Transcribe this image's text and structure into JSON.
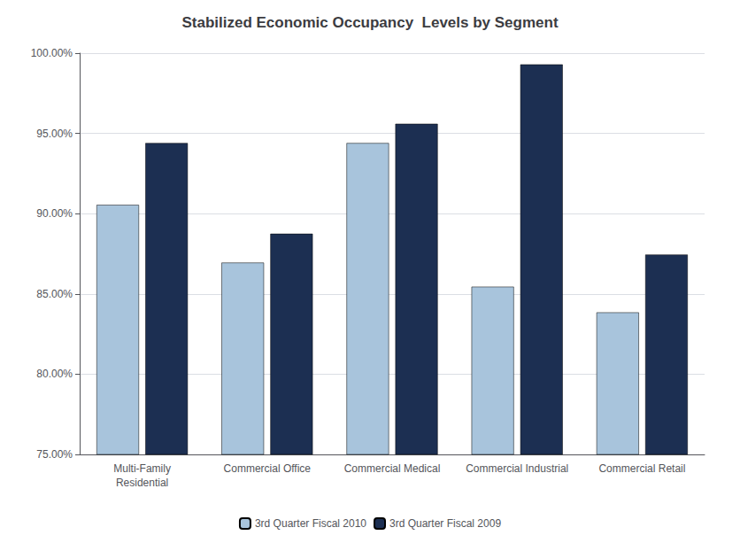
{
  "chart_data": {
    "type": "bar",
    "title": "Stabilized Economic Occupancy  Levels by Segment",
    "categories": [
      "Multi-Family\nResidential",
      "Commercial Office",
      "Commercial Medical",
      "Commercial Industrial",
      "Commercial Retail"
    ],
    "series": [
      {
        "name": "3rd Quarter Fiscal 2010",
        "color": "#a8c4dc",
        "values": [
          0.9055,
          0.8695,
          0.944,
          0.8545,
          0.8385
        ]
      },
      {
        "name": "3rd Quarter Fiscal 2009",
        "color": "#1c2f52",
        "values": [
          0.944,
          0.8875,
          0.956,
          0.993,
          0.8745
        ]
      }
    ],
    "ylim": [
      0.75,
      1.0
    ],
    "yticks": [
      {
        "value": 0.75,
        "label": "75.00%"
      },
      {
        "value": 0.8,
        "label": "80.00%"
      },
      {
        "value": 0.85,
        "label": "85.00%"
      },
      {
        "value": 0.9,
        "label": "90.00%"
      },
      {
        "value": 0.95,
        "label": "95.00%"
      },
      {
        "value": 1.0,
        "label": "100.00%"
      }
    ],
    "grid": true,
    "legend": "bottom"
  }
}
